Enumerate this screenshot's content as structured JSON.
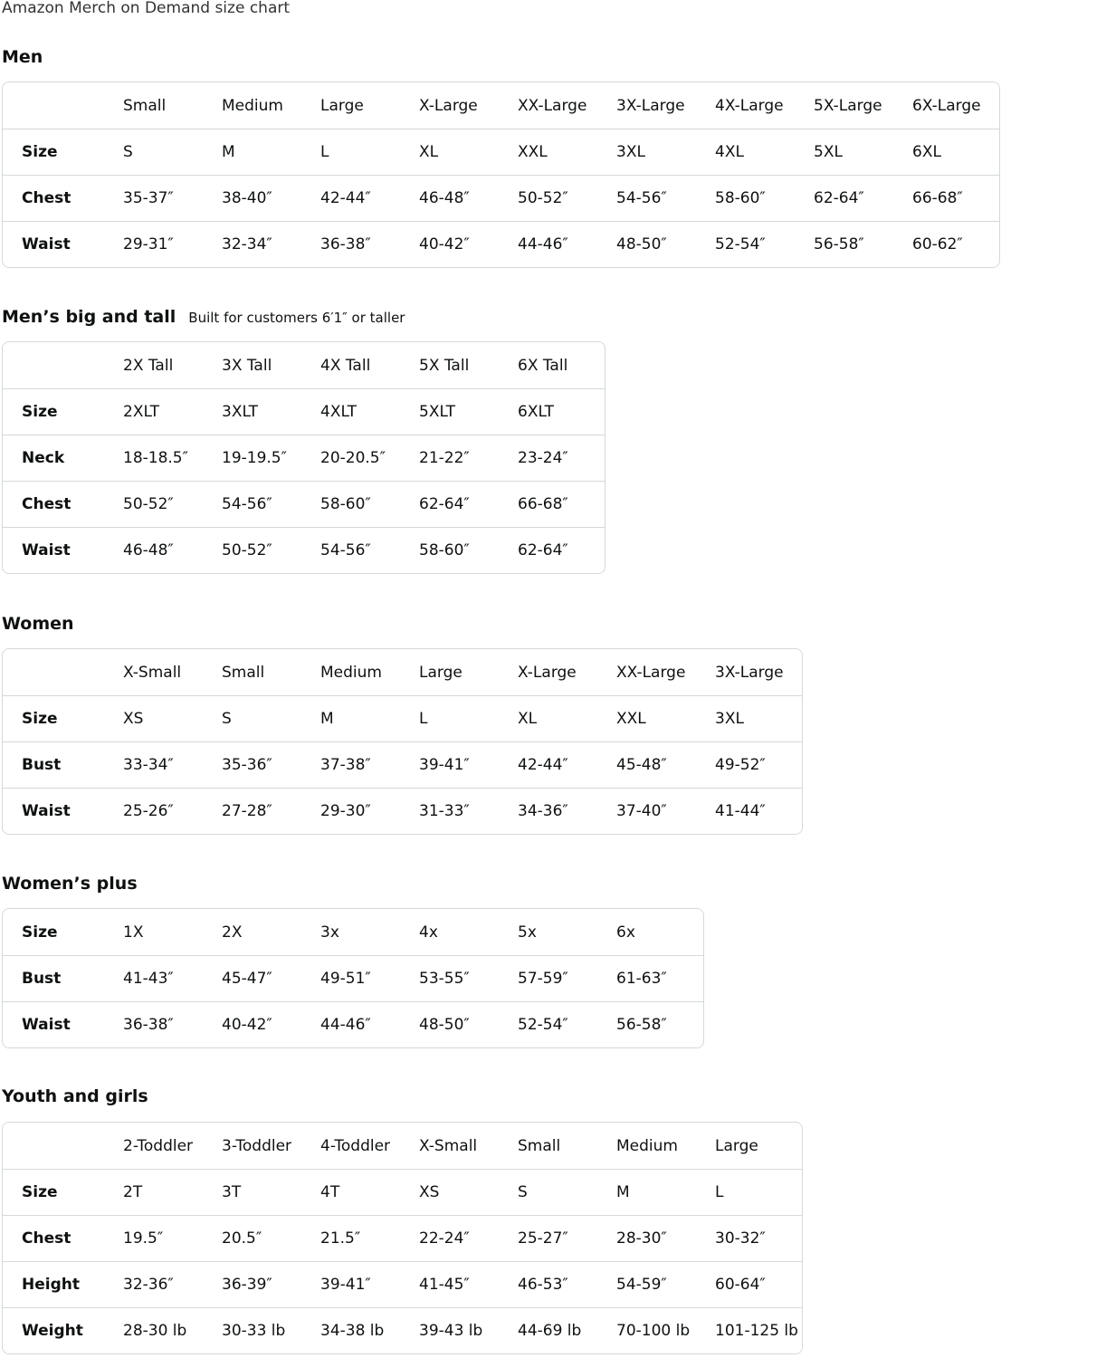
{
  "title": "Amazon Merch on Demand size chart",
  "sections": [
    {
      "heading": "Men",
      "subheading": "",
      "header": [
        "",
        "Small",
        "Medium",
        "Large",
        "X-Large",
        "XX-Large",
        "3X-Large",
        "4X-Large",
        "5X-Large",
        "6X-Large"
      ],
      "rows": [
        [
          "Size",
          "S",
          "M",
          "L",
          "XL",
          "XXL",
          "3XL",
          "4XL",
          "5XL",
          "6XL"
        ],
        [
          "Chest",
          "35-37″",
          "38-40″",
          "42-44″",
          "46-48″",
          "50-52″",
          "54-56″",
          "58-60″",
          "62-64″",
          "66-68″"
        ],
        [
          "Waist",
          "29-31″",
          "32-34″",
          "36-38″",
          "40-42″",
          "44-46″",
          "48-50″",
          "52-54″",
          "56-58″",
          "60-62″"
        ]
      ]
    },
    {
      "heading": "Men’s big and tall",
      "subheading": "Built for customers 6′1″ or taller",
      "header": [
        "",
        "2X Tall",
        "3X Tall",
        "4X Tall",
        "5X Tall",
        "6X Tall"
      ],
      "rows": [
        [
          "Size",
          "2XLT",
          "3XLT",
          "4XLT",
          "5XLT",
          "6XLT"
        ],
        [
          "Neck",
          "18-18.5″",
          "19-19.5″",
          "20-20.5″",
          "21-22″",
          "23-24″"
        ],
        [
          "Chest",
          "50-52″",
          "54-56″",
          "58-60″",
          "62-64″",
          "66-68″"
        ],
        [
          "Waist",
          "46-48″",
          "50-52″",
          "54-56″",
          "58-60″",
          "62-64″"
        ]
      ]
    },
    {
      "heading": "Women",
      "subheading": "",
      "header": [
        "",
        "X-Small",
        "Small",
        "Medium",
        "Large",
        "X-Large",
        "XX-Large",
        "3X-Large"
      ],
      "rows": [
        [
          "Size",
          "XS",
          "S",
          "M",
          "L",
          "XL",
          "XXL",
          "3XL"
        ],
        [
          "Bust",
          "33-34″",
          "35-36″",
          "37-38″",
          "39-41″",
          "42-44″",
          "45-48″",
          "49-52″"
        ],
        [
          "Waist",
          "25-26″",
          "27-28″",
          "29-30″",
          "31-33″",
          "34-36″",
          "37-40″",
          "41-44″"
        ]
      ]
    },
    {
      "heading": "Women’s plus",
      "subheading": "",
      "header": null,
      "rows": [
        [
          "Size",
          "1X",
          "2X",
          "3x",
          "4x",
          "5x",
          "6x"
        ],
        [
          "Bust",
          "41-43″",
          "45-47″",
          "49-51″",
          "53-55″",
          "57-59″",
          "61-63″"
        ],
        [
          "Waist",
          "36-38″",
          "40-42″",
          "44-46″",
          "48-50″",
          "52-54″",
          "56-58″"
        ]
      ]
    },
    {
      "heading": "Youth and girls",
      "subheading": "",
      "header": [
        "",
        "2-Toddler",
        "3-Toddler",
        "4-Toddler",
        "X-Small",
        "Small",
        "Medium",
        "Large"
      ],
      "rows": [
        [
          "Size",
          "2T",
          "3T",
          "4T",
          "XS",
          "S",
          "M",
          "L"
        ],
        [
          "Chest",
          "19.5″",
          "20.5″",
          "21.5″",
          "22-24″",
          "25-27″",
          "28-30″",
          "30-32″"
        ],
        [
          "Height",
          "32-36″",
          "36-39″",
          "39-41″",
          "41-45″",
          "46-53″",
          "54-59″",
          "60-64″"
        ],
        [
          "Weight",
          "28-30 lb",
          "30-33 lb",
          "34-38 lb",
          "39-43 lb",
          "44-69 lb",
          "70-100 lb",
          "101-125 lb"
        ]
      ]
    }
  ]
}
